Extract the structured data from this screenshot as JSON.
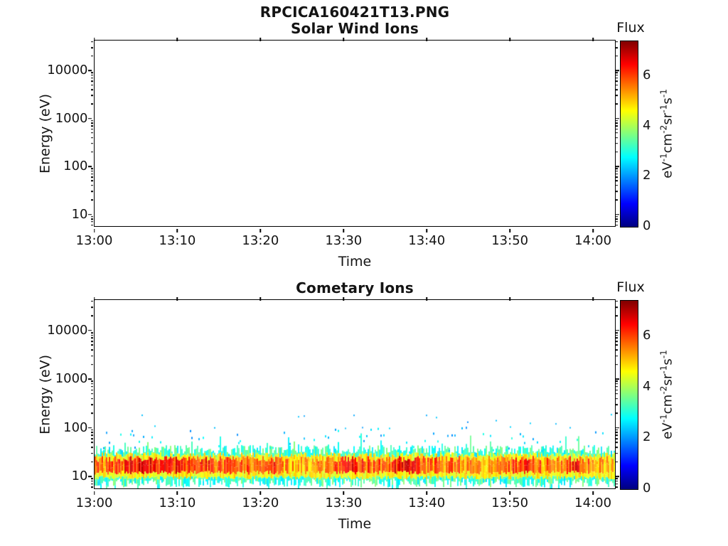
{
  "figure": {
    "title": "RPCICA160421T13.PNG",
    "background": "#ffffff",
    "text_color": "#141414"
  },
  "chart_data": [
    {
      "type": "heatmap",
      "title": "Solar Wind Ions",
      "xlabel": "Time",
      "ylabel": "Energy (eV)",
      "x_tick_labels": [
        "13:00",
        "13:10",
        "13:20",
        "13:30",
        "13:40",
        "13:50",
        "14:00"
      ],
      "x_tick_minutes": [
        0,
        10,
        20,
        30,
        40,
        50,
        60
      ],
      "x_range_minutes": [
        0,
        62.6
      ],
      "y_scale": "log",
      "y_ticks": [
        10,
        100,
        1000,
        10000
      ],
      "y_range_ev": [
        5.8,
        43000
      ],
      "grid": false,
      "legend": "colorbar right",
      "colorbar": {
        "title": "Flux",
        "units": "eV^-1 cm^-2 sr^-1 s^-1",
        "units_parts": [
          [
            "eV",
            "-1"
          ],
          [
            "cm",
            "-2"
          ],
          [
            "sr",
            "-1"
          ],
          [
            "s",
            "-1"
          ]
        ],
        "ticks": [
          0,
          2,
          4,
          6
        ],
        "range": [
          0,
          7.4
        ],
        "colormap": "jet",
        "gradient_stops": [
          [
            0,
            "#000080"
          ],
          [
            0.125,
            "#0000ff"
          ],
          [
            0.375,
            "#00ffff"
          ],
          [
            0.625,
            "#ffff00"
          ],
          [
            0.875,
            "#ff0000"
          ],
          [
            1,
            "#800000"
          ]
        ]
      },
      "series": {
        "band": null,
        "note": "no solar wind ion flux detected during interval; spectrogram blank"
      }
    },
    {
      "type": "heatmap",
      "title": "Cometary Ions",
      "xlabel": "Time",
      "ylabel": "Energy (eV)",
      "x_tick_labels": [
        "13:00",
        "13:10",
        "13:20",
        "13:30",
        "13:40",
        "13:50",
        "14:00"
      ],
      "x_tick_minutes": [
        0,
        10,
        20,
        30,
        40,
        50,
        60
      ],
      "x_range_minutes": [
        0,
        62.6
      ],
      "y_scale": "log",
      "y_ticks": [
        10,
        100,
        1000,
        10000
      ],
      "y_range_ev": [
        5.8,
        43000
      ],
      "grid": false,
      "legend": "colorbar right",
      "colorbar": {
        "title": "Flux",
        "units": "eV^-1 cm^-2 sr^-1 s^-1",
        "units_parts": [
          [
            "eV",
            "-1"
          ],
          [
            "cm",
            "-2"
          ],
          [
            "sr",
            "-1"
          ],
          [
            "s",
            "-1"
          ]
        ],
        "ticks": [
          0,
          2,
          4,
          6
        ],
        "range": [
          0,
          7.4
        ],
        "colormap": "jet",
        "gradient_stops": [
          [
            0,
            "#000080"
          ],
          [
            0.125,
            "#0000ff"
          ],
          [
            0.375,
            "#00ffff"
          ],
          [
            0.625,
            "#ffff00"
          ],
          [
            0.875,
            "#ff0000"
          ],
          [
            1,
            "#800000"
          ]
        ]
      },
      "series": {
        "band": {
          "time_extent_minutes": [
            0,
            62.6
          ],
          "core_energy_ev": [
            12,
            26
          ],
          "core_flux": [
            4.7,
            6.9
          ],
          "fringe_energy_ev": [
            9.5,
            32
          ],
          "fringe_flux": [
            4.2,
            5.1
          ],
          "spike_energy_ev": [
            6,
            45
          ],
          "spike_flux": [
            2.5,
            3.8
          ],
          "speckle_energy_ev": [
            35,
            200
          ],
          "speckle_flux": [
            1.9,
            3.0
          ],
          "seed": 1604211
        },
        "note": "continuous low-energy cometary ion band (~10-30 eV) across entire interval with green/cyan noise fringes and sparse speckles up to ~200 eV"
      }
    }
  ]
}
